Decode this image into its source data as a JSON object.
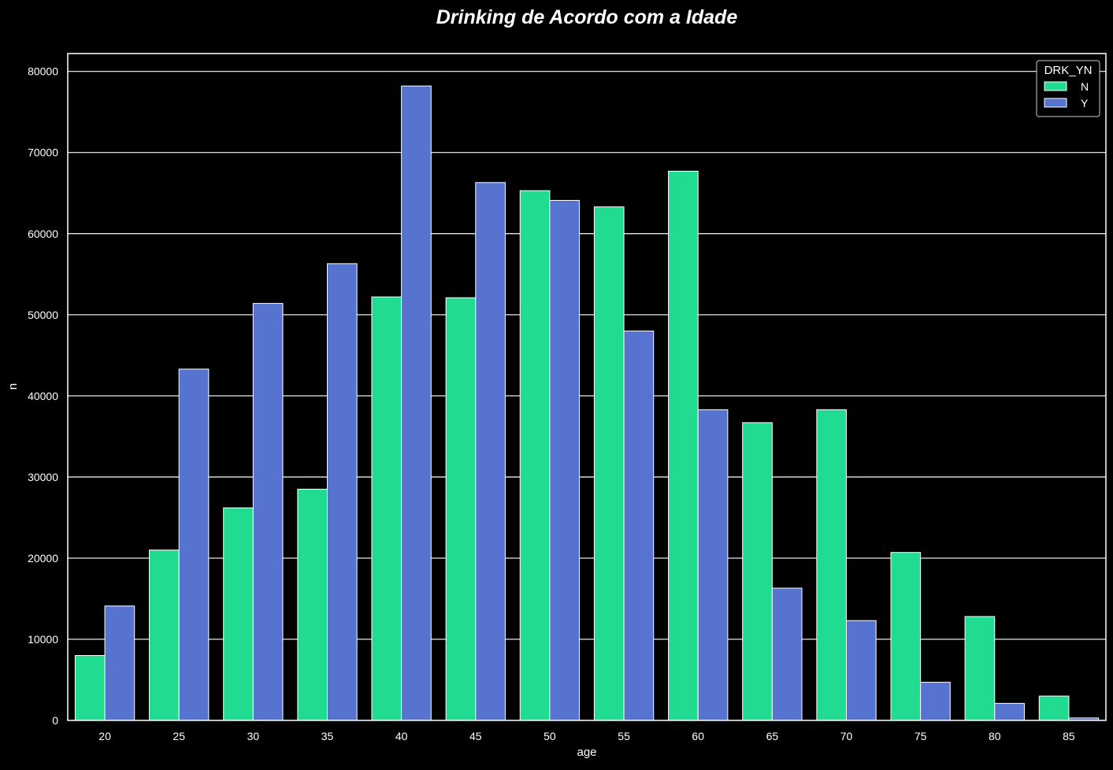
{
  "chart_data": {
    "type": "bar",
    "title": "Drinking de Acordo com a Idade",
    "xlabel": "age",
    "ylabel": "n",
    "categories": [
      "20",
      "25",
      "30",
      "35",
      "40",
      "45",
      "50",
      "55",
      "60",
      "65",
      "70",
      "75",
      "80",
      "85"
    ],
    "series": [
      {
        "name": "N",
        "color": "#21DB90",
        "values": [
          8000,
          21000,
          26200,
          28500,
          52200,
          52100,
          65300,
          63300,
          67700,
          36700,
          38300,
          20700,
          12800,
          3000
        ]
      },
      {
        "name": "Y",
        "color": "#5674CF",
        "values": [
          14100,
          43300,
          51400,
          56300,
          78200,
          66300,
          64100,
          48000,
          38300,
          16300,
          12300,
          4700,
          2100,
          300
        ]
      }
    ],
    "ylim": [
      0,
      82200
    ],
    "yticks": [
      0,
      10000,
      20000,
      30000,
      40000,
      50000,
      60000,
      70000,
      80000
    ],
    "grid": "horizontal",
    "background": "#000000",
    "foreground": "#FFFFFF",
    "legend": {
      "title": "DRK_YN",
      "placement": "top-right"
    }
  }
}
